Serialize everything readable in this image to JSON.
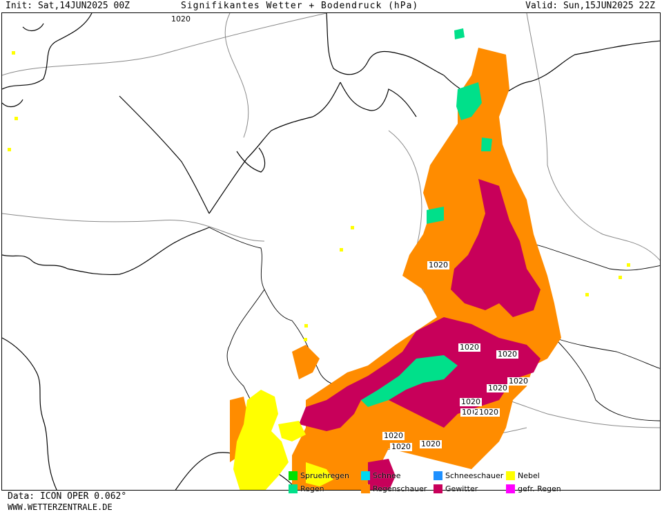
{
  "header": {
    "init": "Init: Sat,14JUN2025 00Z",
    "title": "Signifikantes Wetter + Bodendruck (hPa)",
    "valid": "Valid: Sun,15JUN2025 22Z"
  },
  "footer": {
    "model": "Data: ICON OPER 0.062°",
    "site": "WWW.WETTERZENTRALE.DE"
  },
  "isobar_labels": [
    "1020",
    "1020",
    "1020",
    "1020",
    "1020",
    "1020",
    "1020",
    "1020",
    "1020",
    "10",
    "1020",
    "1020",
    "1020"
  ],
  "legend": [
    {
      "label": "Spruehregen",
      "color": "#00e000"
    },
    {
      "label": "Schnee",
      "color": "#00d8f0"
    },
    {
      "label": "Schneeschauer",
      "color": "#1e90ff"
    },
    {
      "label": "Nebel",
      "color": "#ffff00"
    },
    {
      "label": "Regen",
      "color": "#00e08a"
    },
    {
      "label": "Regenschauer",
      "color": "#ff8c00"
    },
    {
      "label": "Gewitter",
      "color": "#c8005a"
    },
    {
      "label": "gefr. Regen",
      "color": "#ff00ff"
    }
  ],
  "colors": {
    "coast": "#000000",
    "border": "#888888",
    "isobar": "#888888",
    "nebel": "#ffff00",
    "regen": "#00e08a",
    "regenschauer": "#ff8c00",
    "gewitter": "#c8005a"
  }
}
